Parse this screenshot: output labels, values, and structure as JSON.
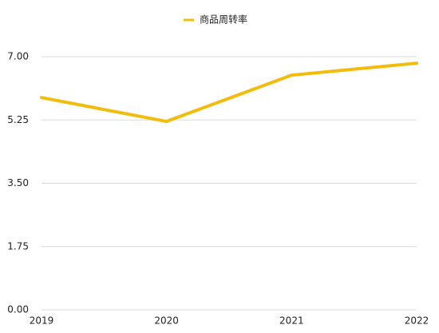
{
  "chart_data": {
    "type": "line",
    "categories": [
      "2019",
      "2020",
      "2021",
      "2022"
    ],
    "series": [
      {
        "name": "商品周转率",
        "color": "#f2bc0d",
        "values": [
          5.87,
          5.21,
          6.49,
          6.82
        ]
      }
    ],
    "ylim": [
      0,
      7
    ],
    "yticks": [
      {
        "value": 0,
        "label": "0.00"
      },
      {
        "value": 1.75,
        "label": "1.75"
      },
      {
        "value": 3.5,
        "label": "3.50"
      },
      {
        "value": 5.25,
        "label": "5.25"
      },
      {
        "value": 7,
        "label": "7.00"
      }
    ],
    "grid": true
  }
}
